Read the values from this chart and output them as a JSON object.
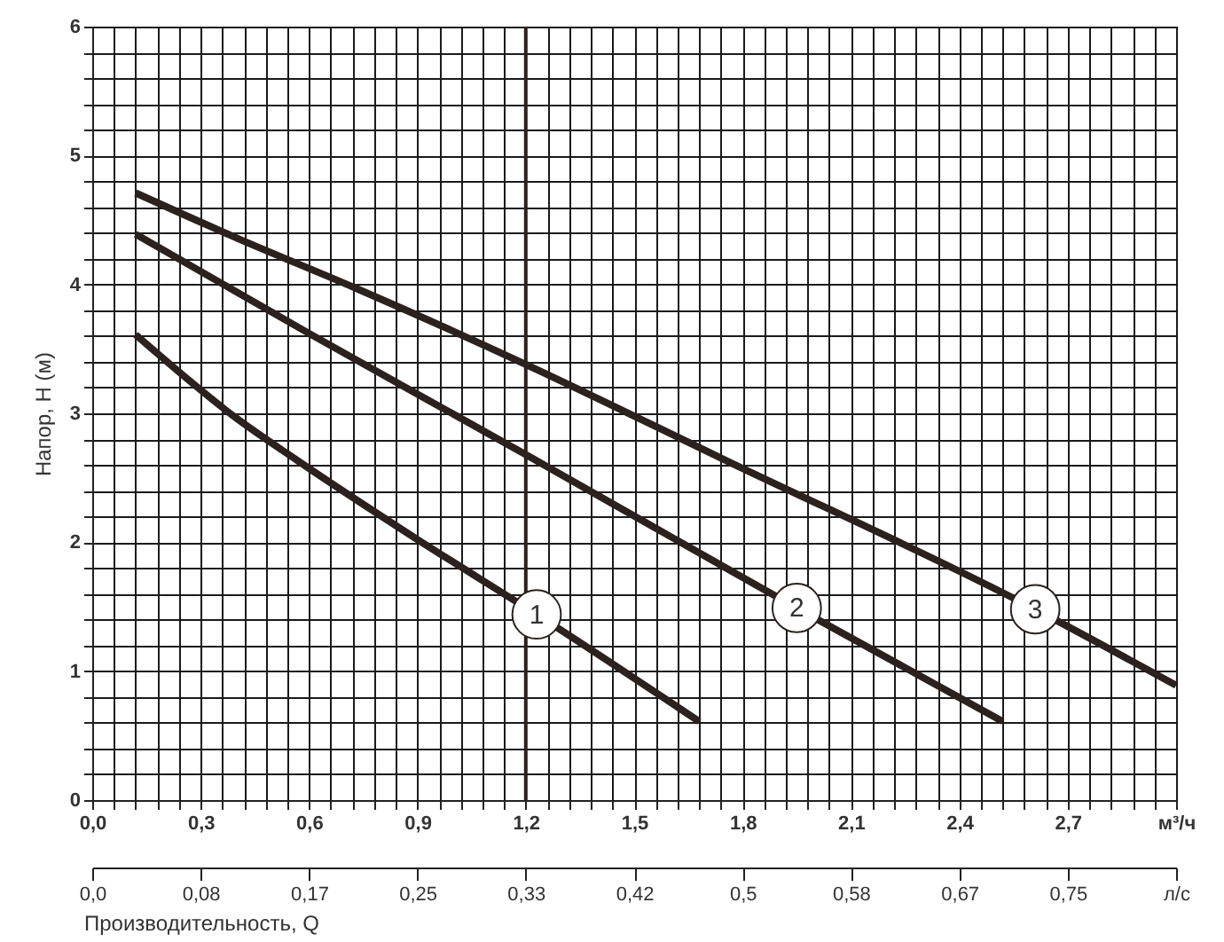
{
  "chart_data": {
    "type": "line",
    "xlabel": "Производительность, Q",
    "ylabel": "Напор, H (м)",
    "xlim": [
      0,
      3
    ],
    "ylim": [
      0,
      6
    ],
    "grid": true,
    "xticks": [
      {
        "value": 0,
        "label": "0,0"
      },
      {
        "value": 0.06,
        "label": null
      },
      {
        "value": 0.12,
        "label": null
      },
      {
        "value": 0.18,
        "label": null
      },
      {
        "value": 0.24,
        "label": null
      },
      {
        "value": 0.3,
        "label": "0,3"
      },
      {
        "value": 0.36,
        "label": null
      },
      {
        "value": 0.42,
        "label": null
      },
      {
        "value": 0.48,
        "label": null
      },
      {
        "value": 0.54,
        "label": null
      },
      {
        "value": 0.6,
        "label": "0,6"
      },
      {
        "value": 0.66,
        "label": null
      },
      {
        "value": 0.72,
        "label": null
      },
      {
        "value": 0.78,
        "label": null
      },
      {
        "value": 0.84,
        "label": null
      },
      {
        "value": 0.9,
        "label": "0,9"
      },
      {
        "value": 0.96,
        "label": null
      },
      {
        "value": 1.02,
        "label": null
      },
      {
        "value": 1.08,
        "label": null
      },
      {
        "value": 1.14,
        "label": null
      },
      {
        "value": 1.2,
        "label": "1,2"
      },
      {
        "value": 1.26,
        "label": null
      },
      {
        "value": 1.32,
        "label": null
      },
      {
        "value": 1.38,
        "label": null
      },
      {
        "value": 1.44,
        "label": null
      },
      {
        "value": 1.5,
        "label": "1,5"
      },
      {
        "value": 1.56,
        "label": null
      },
      {
        "value": 1.62,
        "label": null
      },
      {
        "value": 1.68,
        "label": null
      },
      {
        "value": 1.74,
        "label": null
      },
      {
        "value": 1.8,
        "label": "1,8"
      },
      {
        "value": 1.86,
        "label": null
      },
      {
        "value": 1.92,
        "label": null
      },
      {
        "value": 1.98,
        "label": null
      },
      {
        "value": 2.04,
        "label": null
      },
      {
        "value": 2.1,
        "label": "2,1"
      },
      {
        "value": 2.16,
        "label": null
      },
      {
        "value": 2.22,
        "label": null
      },
      {
        "value": 2.28,
        "label": null
      },
      {
        "value": 2.34,
        "label": null
      },
      {
        "value": 2.4,
        "label": "2,4"
      },
      {
        "value": 2.46,
        "label": null
      },
      {
        "value": 2.52,
        "label": null
      },
      {
        "value": 2.58,
        "label": null
      },
      {
        "value": 2.64,
        "label": null
      },
      {
        "value": 2.7,
        "label": "2,7"
      },
      {
        "value": 2.76,
        "label": null
      },
      {
        "value": 2.82,
        "label": null
      },
      {
        "value": 2.88,
        "label": null
      },
      {
        "value": 2.94,
        "label": null
      },
      {
        "value": 3,
        "label": "м³/ч"
      }
    ],
    "yticks": [
      0,
      {
        "value": 0.2,
        "label": null
      },
      {
        "value": 0.4,
        "label": null
      },
      {
        "value": 0.6,
        "label": null
      },
      {
        "value": 0.8,
        "label": null
      },
      1,
      {
        "value": 1.2,
        "label": null
      },
      {
        "value": 1.4,
        "label": null
      },
      {
        "value": 1.6,
        "label": null
      },
      {
        "value": 1.8,
        "label": null
      },
      2,
      {
        "value": 2.2,
        "label": null
      },
      {
        "value": 2.4,
        "label": null
      },
      {
        "value": 2.6,
        "label": null
      },
      {
        "value": 2.8,
        "label": null
      },
      3,
      {
        "value": 3.2,
        "label": null
      },
      {
        "value": 3.4,
        "label": null
      },
      {
        "value": 3.6,
        "label": null
      },
      {
        "value": 3.8,
        "label": null
      },
      4,
      {
        "value": 4.2,
        "label": null
      },
      {
        "value": 4.4,
        "label": null
      },
      {
        "value": 4.6,
        "label": null
      },
      {
        "value": 4.8,
        "label": null
      },
      5,
      {
        "value": 5.2,
        "label": null
      },
      {
        "value": 5.4,
        "label": null
      },
      {
        "value": 5.6,
        "label": null
      },
      {
        "value": 5.8,
        "label": null
      },
      6
    ],
    "x2lim": [
      0,
      0.8333
    ],
    "x2ticks": [
      {
        "value": 0,
        "label": "0,0"
      },
      {
        "value": 0.0833,
        "label": "0,08"
      },
      {
        "value": 0.1667,
        "label": "0,17"
      },
      {
        "value": 0.25,
        "label": "0,25"
      },
      {
        "value": 0.3333,
        "label": "0,33"
      },
      {
        "value": 0.4167,
        "label": "0,42"
      },
      {
        "value": 0.5,
        "label": "0,5"
      },
      {
        "value": 0.5833,
        "label": "0,58"
      },
      {
        "value": 0.6667,
        "label": "0,67"
      },
      {
        "value": 0.75,
        "label": "0,75"
      },
      {
        "value": 0.8333,
        "label": "л/с"
      }
    ],
    "ref_lines": [
      {
        "axis": "x",
        "value": 1.2,
        "color": "#2b211e"
      }
    ],
    "series": [
      {
        "name": "1",
        "color": "#2b211e",
        "x": [
          0.12,
          0.4,
          0.565,
          0.89,
          1.23,
          1.68
        ],
        "values": [
          3.61,
          2.96,
          2.64,
          2.04,
          1.44,
          0.61
        ]
      },
      {
        "name": "2",
        "color": "#2b211e",
        "x": [
          0.12,
          0.6,
          1.2,
          1.95,
          2.52
        ],
        "values": [
          4.39,
          3.62,
          2.68,
          1.49,
          0.61
        ]
      },
      {
        "name": "3",
        "color": "#2b211e",
        "x": [
          0.12,
          0.4,
          0.73,
          1.2,
          1.75,
          2.61,
          3.0
        ],
        "values": [
          4.71,
          4.36,
          3.97,
          3.38,
          2.64,
          1.48,
          0.89
        ]
      }
    ]
  }
}
